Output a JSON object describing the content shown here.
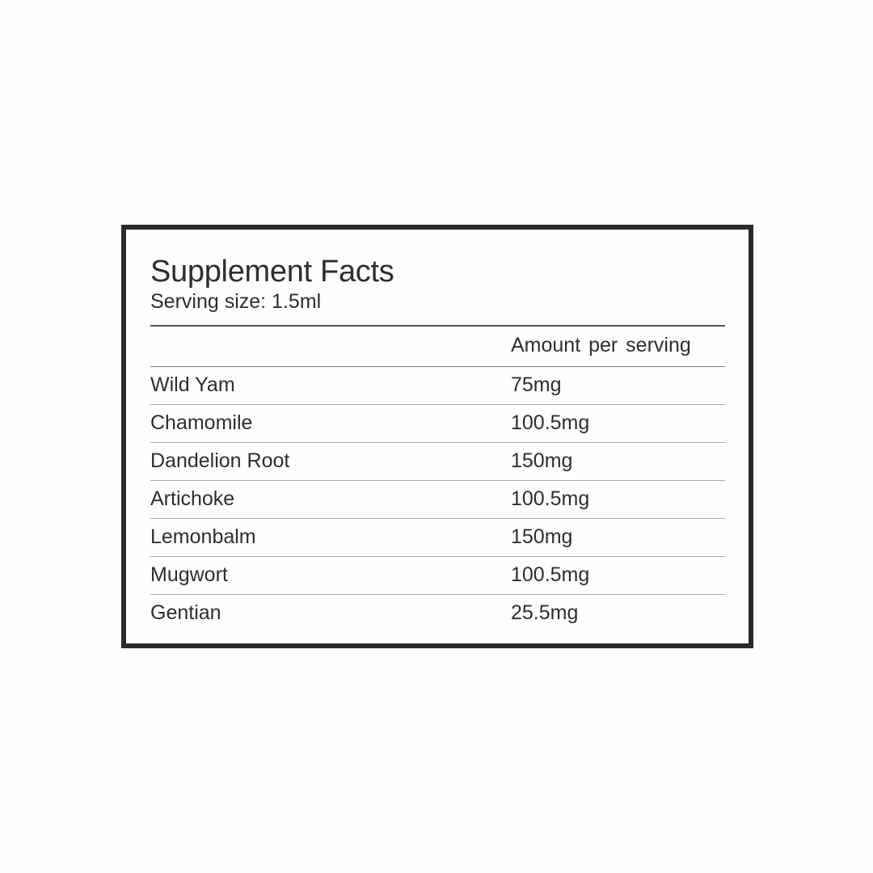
{
  "title": "Supplement Facts",
  "serving_size": "Serving size: 1.5ml",
  "column_header": "Amount  per serving",
  "rows": [
    {
      "name": "Wild Yam",
      "amount": "75mg"
    },
    {
      "name": "Chamomile",
      "amount": "100.5mg"
    },
    {
      "name": "Dandelion Root",
      "amount": "150mg"
    },
    {
      "name": "Artichoke",
      "amount": "100.5mg"
    },
    {
      "name": "Lemonbalm",
      "amount": "150mg"
    },
    {
      "name": "Mugwort",
      "amount": "100.5mg"
    },
    {
      "name": "Gentian",
      "amount": "25.5mg"
    }
  ]
}
